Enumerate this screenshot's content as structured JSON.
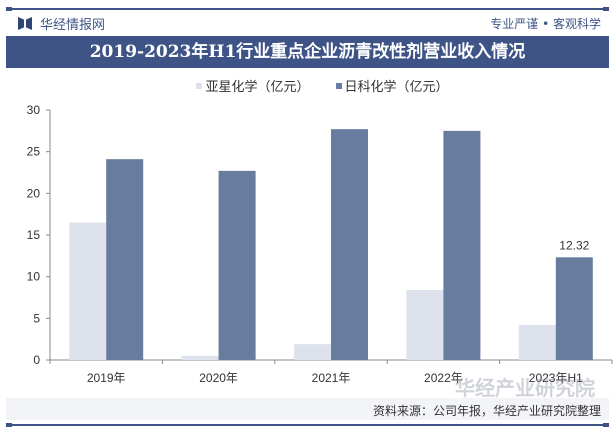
{
  "header": {
    "brand": "华经情报网",
    "slogan": "专业严谨 • 客观科学",
    "title": "2019-2023年H1行业重点企业沥青改性剂营业收入情况"
  },
  "footer": {
    "source": "资料来源：公司年报，华经产业研究院整理",
    "watermark": "华经产业研究院"
  },
  "legend": [
    {
      "label": "亚星化学（亿元）",
      "color": "#dde2ec"
    },
    {
      "label": "日科化学（亿元）",
      "color": "#687c9f"
    }
  ],
  "chart_data": {
    "type": "bar",
    "title": "2019-2023年H1行业重点企业沥青改性剂营业收入情况",
    "categories": [
      "2019年",
      "2020年",
      "2021年",
      "2022年",
      "2023年H1"
    ],
    "series": [
      {
        "name": "亚星化学（亿元）",
        "color": "#dde2ec",
        "values": [
          16.5,
          0.5,
          1.9,
          8.4,
          4.2
        ]
      },
      {
        "name": "日科化学（亿元）",
        "color": "#687c9f",
        "values": [
          24.1,
          22.7,
          27.7,
          27.5,
          12.32
        ]
      }
    ],
    "data_labels": [
      {
        "series": 1,
        "index": 4,
        "text": "12.32"
      }
    ],
    "xlabel": "",
    "ylabel": "",
    "ylim": [
      0,
      30
    ],
    "yticks": [
      0,
      5,
      10,
      15,
      20,
      25,
      30
    ],
    "grid": false,
    "legend_position": "top"
  }
}
